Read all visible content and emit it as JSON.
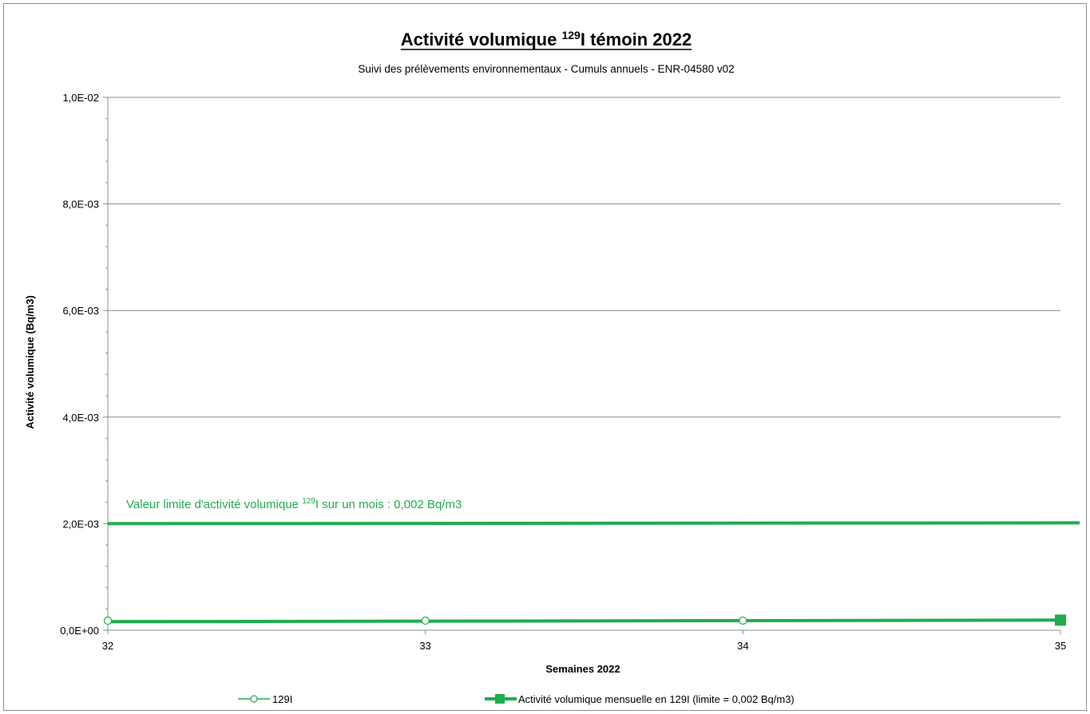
{
  "chart_data": {
    "type": "line",
    "title": {
      "prefix": "Activité volumique ",
      "superscript": "129",
      "suffix": "I témoin 2022"
    },
    "subtitle": "Suivi des prélèvements environnementaux - Cumuls annuels - ENR-04580 v02",
    "xlabel": "Semaines 2022",
    "ylabel": "Activité volumique (Bq/m3)",
    "x_ticks": [
      32,
      33,
      34,
      35
    ],
    "xlim": [
      32,
      35
    ],
    "y_ticks": [
      "0,0E+00",
      "2,0E-03",
      "4,0E-03",
      "6,0E-03",
      "8,0E-03",
      "1,0E-02"
    ],
    "ylim": [
      0,
      0.01
    ],
    "grid": true,
    "legend_position": "bottom",
    "series": [
      {
        "name": "129I",
        "x": [
          32,
          33,
          34
        ],
        "values": [
          0.00018,
          0.00018,
          0.00018
        ],
        "color": "#1fad4e",
        "marker": "open-circle"
      },
      {
        "name": "Activité volumique mensuelle en 129I  (limite = 0,002 Bq/m3)",
        "x": [
          32,
          35
        ],
        "values": [
          0.00016,
          0.00019
        ],
        "color": "#1fad4e",
        "marker": "filled-square-end"
      }
    ],
    "limit_line": {
      "value": 0.002,
      "color": "#1fad4e",
      "label": {
        "prefix": "Valeur limite d'activité volumique ",
        "superscript": "129",
        "suffix": "I sur un mois : 0,002 Bq/m3"
      }
    }
  }
}
